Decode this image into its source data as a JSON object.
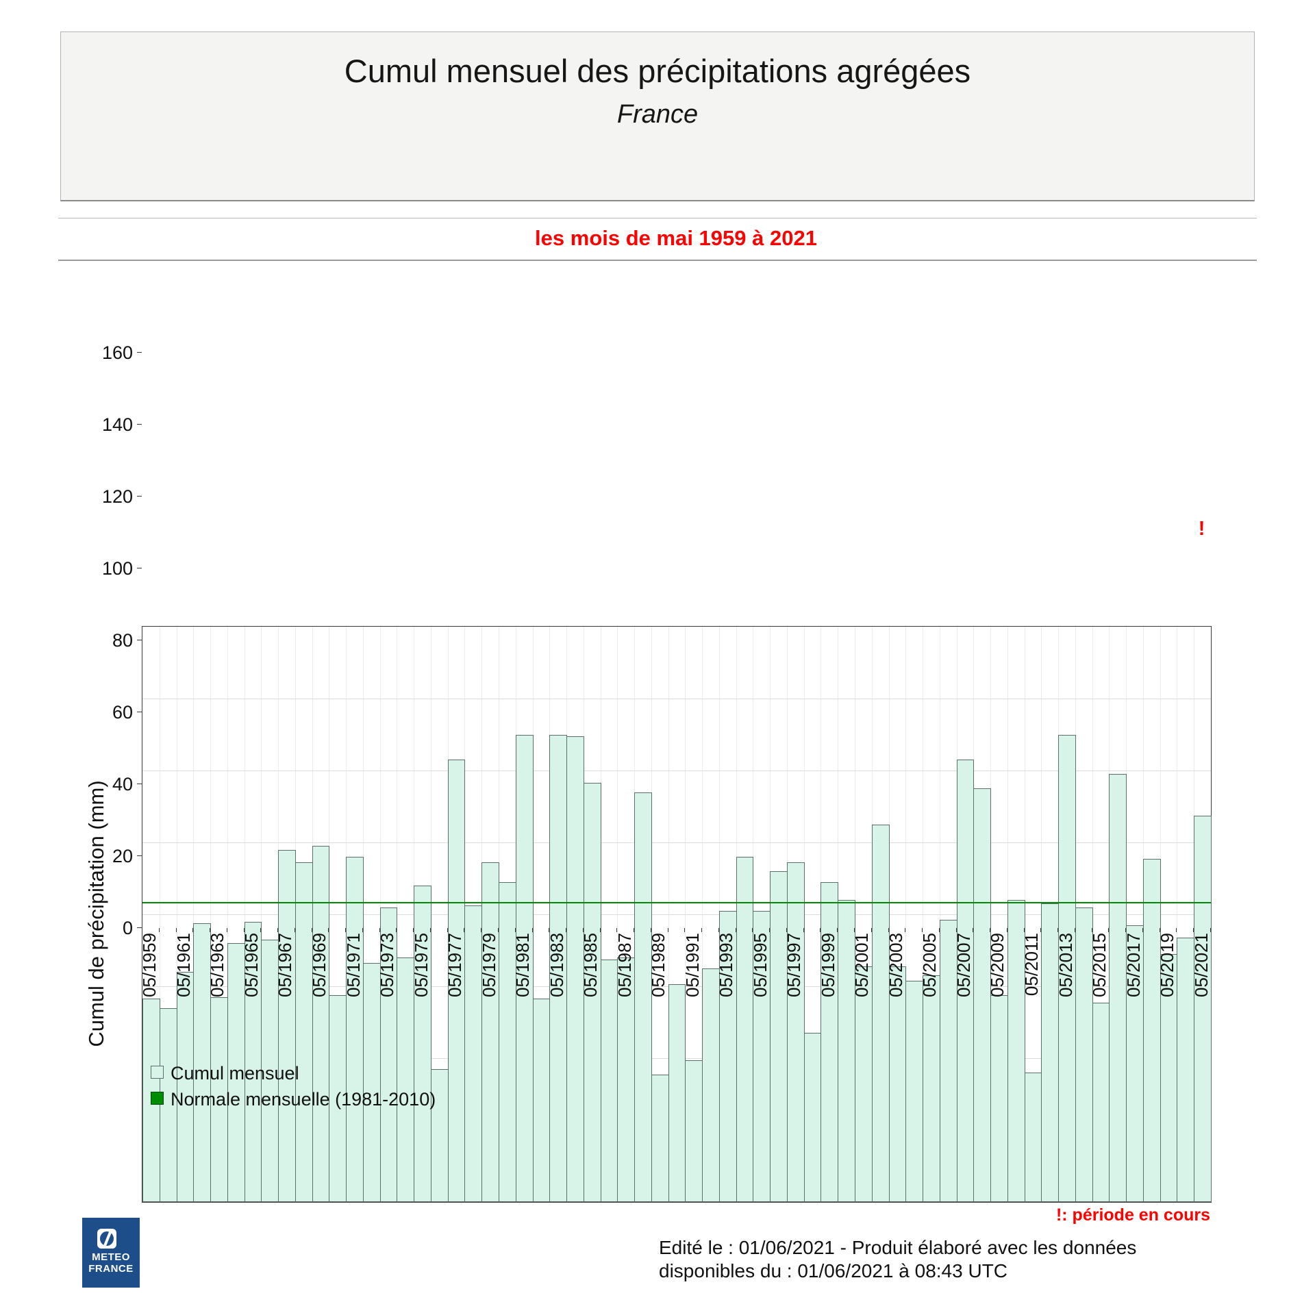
{
  "header": {
    "title": "Cumul mensuel des précipitations agrégées",
    "subtitle": "France",
    "period_label": "les mois de mai 1959 à 2021"
  },
  "colors": {
    "bar_fill": "#d8f3e7",
    "bar_border": "#5c6f6d",
    "normal_line": "#008c00",
    "accent_red": "#ff0000",
    "band_bg": "#f4f4f3",
    "logo_blue": "#1d4e89"
  },
  "chart_data": {
    "type": "bar",
    "title": "Cumul mensuel des précipitations agrégées - France",
    "xlabel": "",
    "ylabel": "Cumul de précipitation (mm)",
    "ylim": [
      0,
      160
    ],
    "ytick_step": 20,
    "grid": true,
    "legend_position": "bottom-left",
    "year_start": 1959,
    "year_end": 2021,
    "month": "05",
    "tick_labels": [
      "05/1959",
      "05/1961",
      "05/1963",
      "05/1965",
      "05/1967",
      "05/1969",
      "05/1971",
      "05/1973",
      "05/1975",
      "05/1977",
      "05/1979",
      "05/1981",
      "05/1983",
      "05/1985",
      "05/1987",
      "05/1989",
      "05/1991",
      "05/1993",
      "05/1995",
      "05/1997",
      "05/1999",
      "05/2001",
      "05/2003",
      "05/2005",
      "05/2007",
      "05/2009",
      "05/2011",
      "05/2013",
      "05/2015",
      "05/2017",
      "05/2019",
      "05/2021"
    ],
    "values": [
      56.5,
      54,
      64,
      77.5,
      57,
      72,
      78,
      73,
      98,
      94.5,
      99,
      57.5,
      96,
      66.5,
      82,
      68,
      88,
      37,
      123,
      82.5,
      94.5,
      89,
      130,
      56.5,
      130,
      129.5,
      116.5,
      67.5,
      68,
      114,
      35.5,
      60.5,
      39.5,
      65,
      81,
      96,
      81,
      92,
      94.5,
      47,
      89,
      84,
      65.5,
      105,
      65.5,
      61.5,
      63,
      78.5,
      123,
      115,
      57.5,
      84,
      36,
      83,
      130,
      82,
      55.5,
      119,
      77,
      95.5,
      69,
      73.5,
      107.5
    ],
    "normal_value": 83.3,
    "current_period_marker": "!",
    "series_label": "Cumul mensuel",
    "normal_label": "Normale mensuelle (1981-2010)"
  },
  "legend": {
    "items": [
      {
        "label": "Cumul mensuel",
        "swatch": "light"
      },
      {
        "label": "Normale mensuelle (1981-2010)",
        "swatch": "dark"
      }
    ]
  },
  "footer": {
    "marker_note": "!: période en cours",
    "edited_line1": "Edité le : 01/06/2021 - Produit élaboré avec les données",
    "edited_line2": "disponibles du : 01/06/2021 à 08:43 UTC"
  },
  "logo": {
    "line1": "METEO",
    "line2": "FRANCE"
  }
}
